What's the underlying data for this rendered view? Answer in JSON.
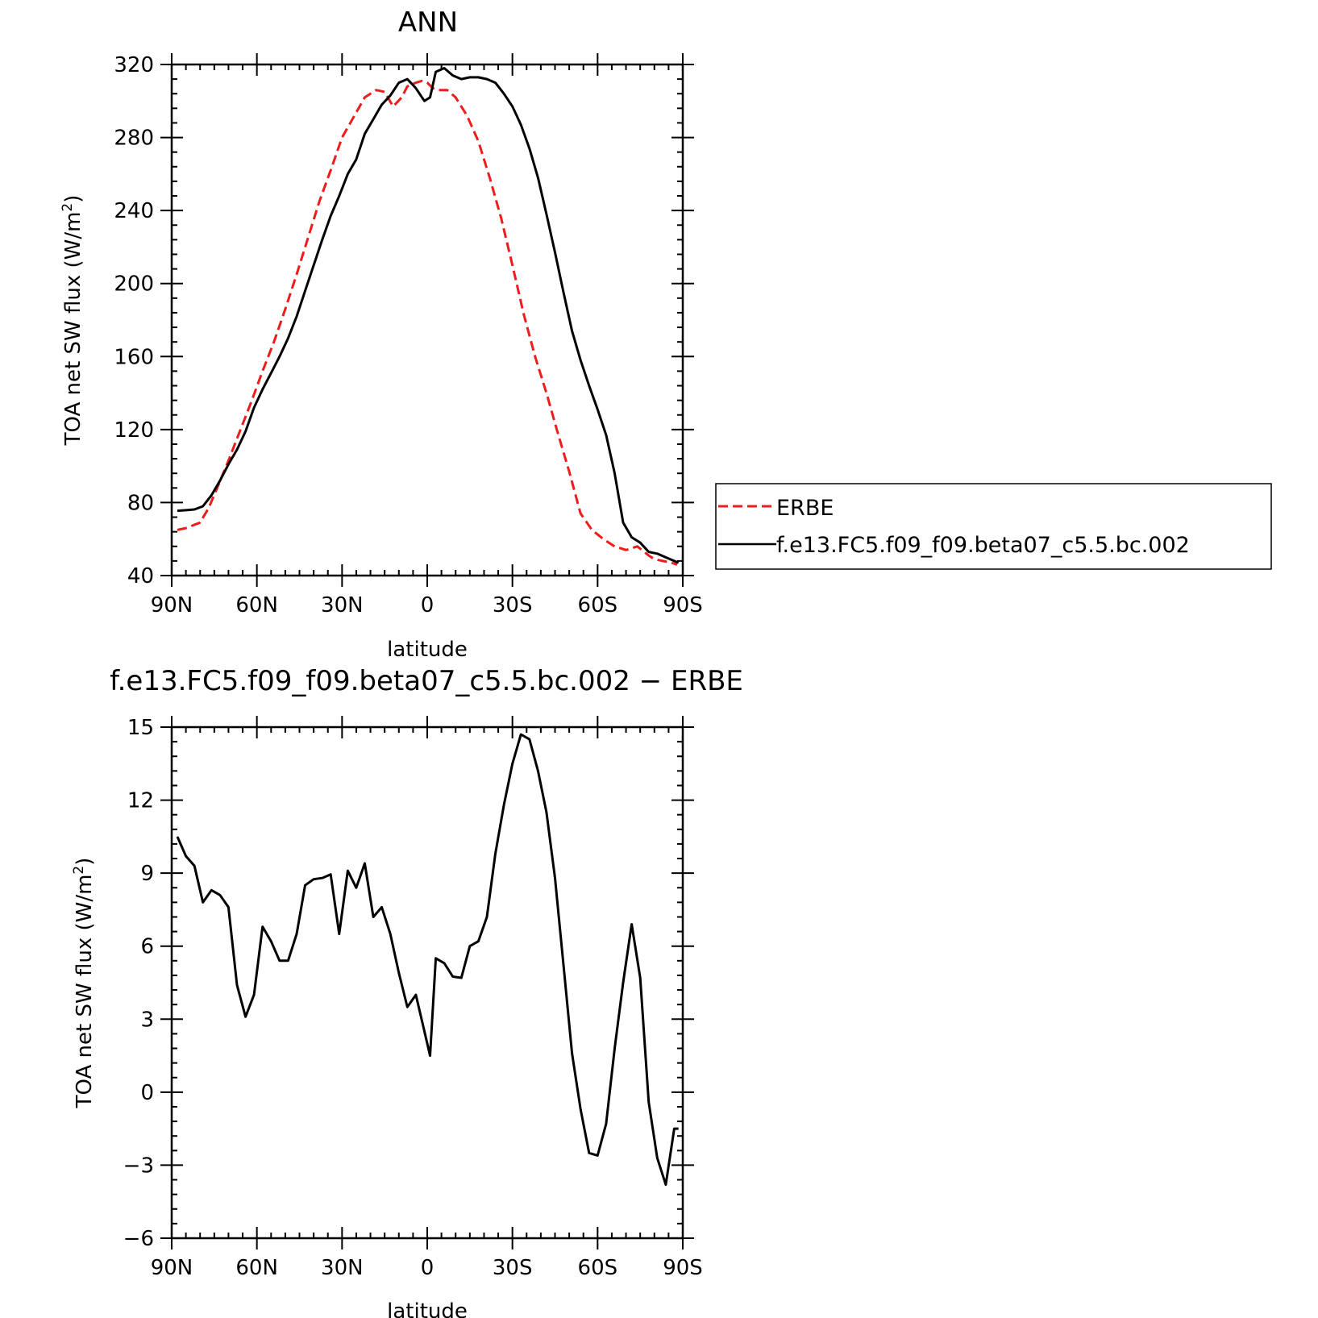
{
  "chart_data": [
    {
      "type": "line",
      "title": "ANN",
      "xlabel": "latitude",
      "ylabel": "TOA net SW flux (W/m",
      "ylabel_sup": "2",
      "ylabel_close": ")",
      "xlim": [
        90,
        -90
      ],
      "ylim": [
        40,
        320
      ],
      "x_ticks": [
        90,
        60,
        30,
        0,
        -30,
        -60,
        -90
      ],
      "x_tick_labels": [
        "90N",
        "60N",
        "30N",
        "0",
        "30S",
        "60S",
        "90S"
      ],
      "y_ticks": [
        40,
        80,
        120,
        160,
        200,
        240,
        280,
        320
      ],
      "y_tick_labels": [
        "40",
        "80",
        "120",
        "160",
        "200",
        "240",
        "280",
        "320"
      ],
      "grid": false,
      "legend_position": "right",
      "series": [
        {
          "name": "ERBE",
          "color": "#ee1c1c",
          "dash": "dashed",
          "x": [
            88,
            85,
            80,
            77,
            74,
            70,
            66,
            62,
            58,
            54,
            50,
            46,
            42,
            38,
            34,
            30,
            26,
            22,
            18,
            15,
            12,
            9,
            7,
            4,
            2,
            0,
            -2,
            -4,
            -7,
            -10,
            -14,
            -18,
            -22,
            -26,
            -30,
            -34,
            -38,
            -42,
            -46,
            -50,
            -54,
            -58,
            -62,
            -66,
            -70,
            -74,
            -78,
            -80,
            -83,
            -86,
            -88
          ],
          "y": [
            65,
            66,
            69,
            77,
            88,
            103,
            119,
            135,
            152,
            168,
            186,
            205,
            225,
            245,
            262,
            280,
            291,
            302,
            306,
            305,
            297,
            302,
            308,
            310,
            311,
            310,
            307,
            306,
            306,
            302,
            292,
            278,
            258,
            236,
            210,
            183,
            160,
            140,
            118,
            97,
            74,
            65,
            60,
            56,
            54,
            56,
            51,
            49,
            48,
            47,
            46
          ]
        },
        {
          "name": "f.e13.FC5.f09_f09.beta07_c5.5.bc.002",
          "color": "#000000",
          "dash": "solid",
          "x": [
            88,
            85,
            82,
            79,
            76,
            73,
            70,
            67,
            64,
            61,
            58,
            55,
            52,
            49,
            46,
            43,
            40,
            37,
            34,
            31,
            28,
            25,
            22,
            19,
            16,
            13,
            10,
            7,
            4,
            1,
            -1,
            -3,
            -6,
            -9,
            -12,
            -15,
            -18,
            -21,
            -24,
            -27,
            -30,
            -33,
            -36,
            -39,
            -42,
            -45,
            -48,
            -51,
            -54,
            -57,
            -60,
            -63,
            -66,
            -69,
            -72,
            -75,
            -78,
            -81,
            -84,
            -87,
            -88.5
          ],
          "y": [
            75.5,
            75.8,
            76.2,
            78,
            84,
            92,
            101,
            109,
            119,
            132,
            142,
            151,
            160,
            170,
            182,
            196,
            210,
            224,
            237,
            248,
            260,
            268,
            282,
            290,
            298,
            303,
            310,
            312,
            307,
            300,
            302,
            316,
            318,
            314,
            312,
            313,
            313,
            312,
            310,
            304,
            297,
            287,
            274,
            258,
            238,
            217,
            195,
            174,
            158,
            144,
            131,
            117,
            96,
            69,
            61,
            58,
            53,
            52,
            50,
            48,
            47
          ]
        }
      ]
    },
    {
      "type": "line",
      "title": "f.e13.FC5.f09_f09.beta07_c5.5.bc.002 − ERBE",
      "xlabel": "latitude",
      "ylabel": "TOA net SW flux (W/m",
      "ylabel_sup": "2",
      "ylabel_close": ")",
      "xlim": [
        90,
        -90
      ],
      "ylim": [
        -6,
        15
      ],
      "x_ticks": [
        90,
        60,
        30,
        0,
        -30,
        -60,
        -90
      ],
      "x_tick_labels": [
        "90N",
        "60N",
        "30N",
        "0",
        "30S",
        "60S",
        "90S"
      ],
      "y_ticks": [
        -6,
        -3,
        0,
        3,
        6,
        9,
        12,
        15
      ],
      "y_tick_labels": [
        "−6",
        "−3",
        "0",
        "3",
        "6",
        "9",
        "12",
        "15"
      ],
      "grid": false,
      "series": [
        {
          "color": "#000000",
          "dash": "solid",
          "x": [
            88,
            85,
            82,
            79,
            76,
            73,
            70,
            67,
            64,
            61,
            58,
            55,
            52,
            49,
            46,
            43,
            40,
            37,
            34,
            31,
            28,
            25,
            22,
            19,
            16,
            13,
            10,
            7,
            4,
            1,
            -1,
            -3,
            -6,
            -9,
            -12,
            -15,
            -18,
            -21,
            -24,
            -27,
            -30,
            -33,
            -36,
            -39,
            -42,
            -45,
            -48,
            -51,
            -54,
            -57,
            -60,
            -63,
            -66,
            -69,
            -72,
            -75,
            -78,
            -81,
            -84,
            -87,
            -88.5
          ],
          "y": [
            10.5,
            9.7,
            9.3,
            7.8,
            8.3,
            8.1,
            7.6,
            4.4,
            3.1,
            4.0,
            6.8,
            6.2,
            5.4,
            5.4,
            6.5,
            8.5,
            8.75,
            8.8,
            8.95,
            6.5,
            9.1,
            8.4,
            9.4,
            7.2,
            7.6,
            6.5,
            4.9,
            3.5,
            4.0,
            2.5,
            1.5,
            5.5,
            5.3,
            4.75,
            4.7,
            6.0,
            6.2,
            7.2,
            9.8,
            11.8,
            13.5,
            14.7,
            14.5,
            13.2,
            11.5,
            8.8,
            5.2,
            1.6,
            -0.7,
            -2.5,
            -2.6,
            -1.3,
            1.8,
            4.5,
            6.9,
            4.7,
            -0.4,
            -2.7,
            -3.8,
            -1.5,
            -1.5
          ]
        }
      ]
    }
  ]
}
